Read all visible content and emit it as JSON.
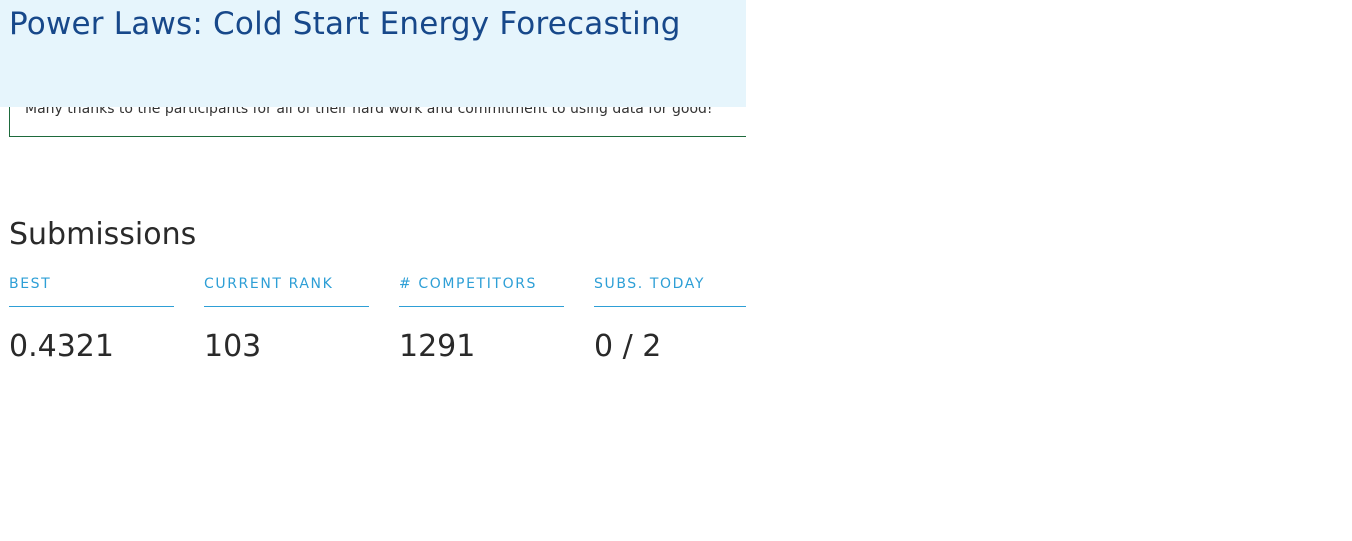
{
  "header": {
    "title": "Power Laws: Cold Start Energy Forecasting"
  },
  "notice": {
    "text": "Many thanks to the participants for all of their hard work and commitment to using data for good!"
  },
  "submissions": {
    "title": "Submissions",
    "stats": [
      {
        "label": "BEST",
        "value": "0.4321"
      },
      {
        "label": "CURRENT RANK",
        "value": "103"
      },
      {
        "label": "# COMPETITORS",
        "value": "1291"
      },
      {
        "label": "SUBS. TODAY",
        "value": "0 / 2"
      }
    ]
  },
  "colors": {
    "header_bg": "#e6f5fc",
    "title": "#17488a",
    "accent": "#2e9fd6",
    "notice_border": "#1e6a3c"
  }
}
